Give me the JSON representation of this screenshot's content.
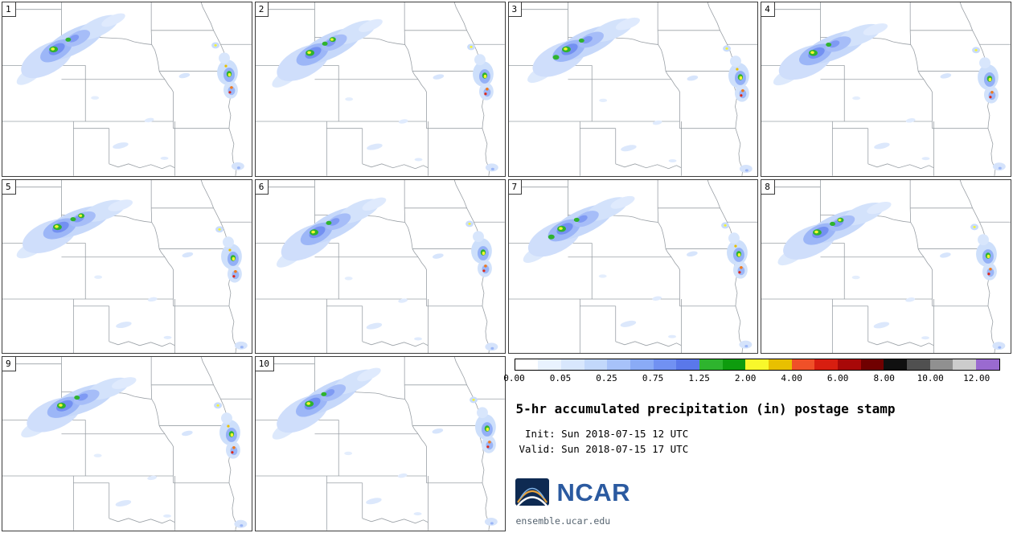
{
  "legend": {
    "title": "5-hr accumulated precipitation (in) postage stamp",
    "init_line": " Init: Sun 2018-07-15 12 UTC",
    "valid_line": "Valid: Sun 2018-07-15 17 UTC",
    "logo_text": "NCAR",
    "site": "ensemble.ucar.edu"
  },
  "colorbar": {
    "ticks": [
      "0.00",
      "0.05",
      "0.25",
      "0.75",
      "1.25",
      "2.00",
      "4.00",
      "6.00",
      "8.00",
      "10.00",
      "12.00"
    ],
    "segment_colors": [
      "#ffffff",
      "#e9f2fe",
      "#d8e7fd",
      "#c2d8fb",
      "#a7c2f9",
      "#8aabf6",
      "#7191f2",
      "#5a78ea",
      "#2eb42e",
      "#0e9c0e",
      "#f8f82b",
      "#e8c000",
      "#f05028",
      "#d81e10",
      "#a80808",
      "#700000",
      "#101010",
      "#505050",
      "#909090",
      "#cccccc",
      "#9a6ad0"
    ]
  },
  "panels": [
    {
      "label": "1"
    },
    {
      "label": "2"
    },
    {
      "label": "3"
    },
    {
      "label": "4"
    },
    {
      "label": "5"
    },
    {
      "label": "6"
    },
    {
      "label": "7"
    },
    {
      "label": "8"
    },
    {
      "label": "9"
    },
    {
      "label": "10"
    }
  ]
}
